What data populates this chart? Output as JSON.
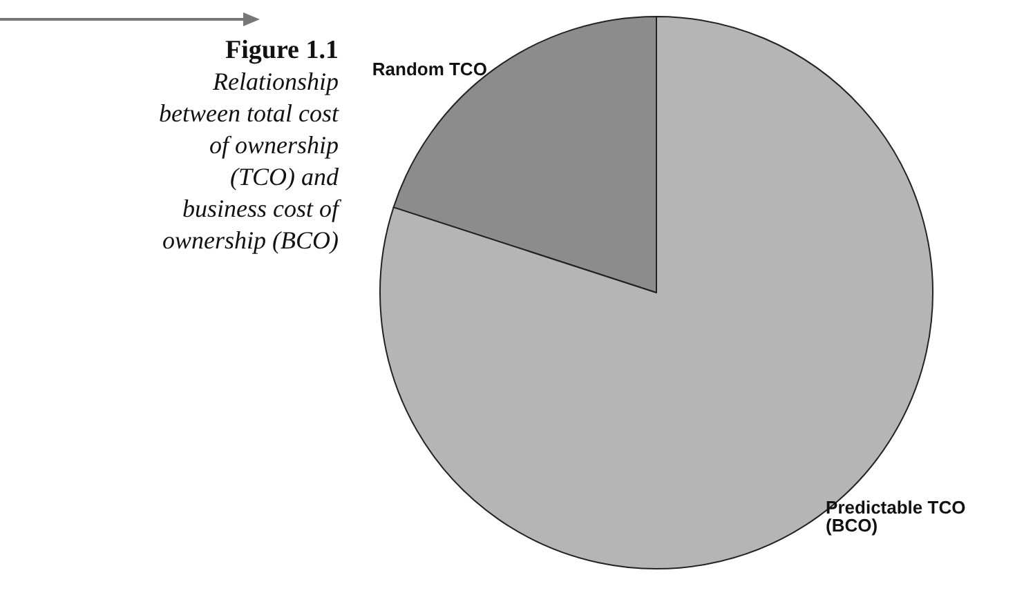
{
  "chart_data": {
    "type": "pie",
    "title": "Figure 1.1",
    "subtitle": "Relationship between total cost of ownership (TCO) and business cost of ownership (BCO)",
    "categories": [
      "Random TCO",
      "Predictable TCO\n(BCO)"
    ],
    "values": [
      20,
      80
    ],
    "colors": [
      "#8c8c8c",
      "#b5b5b5"
    ],
    "legend": false
  }
}
